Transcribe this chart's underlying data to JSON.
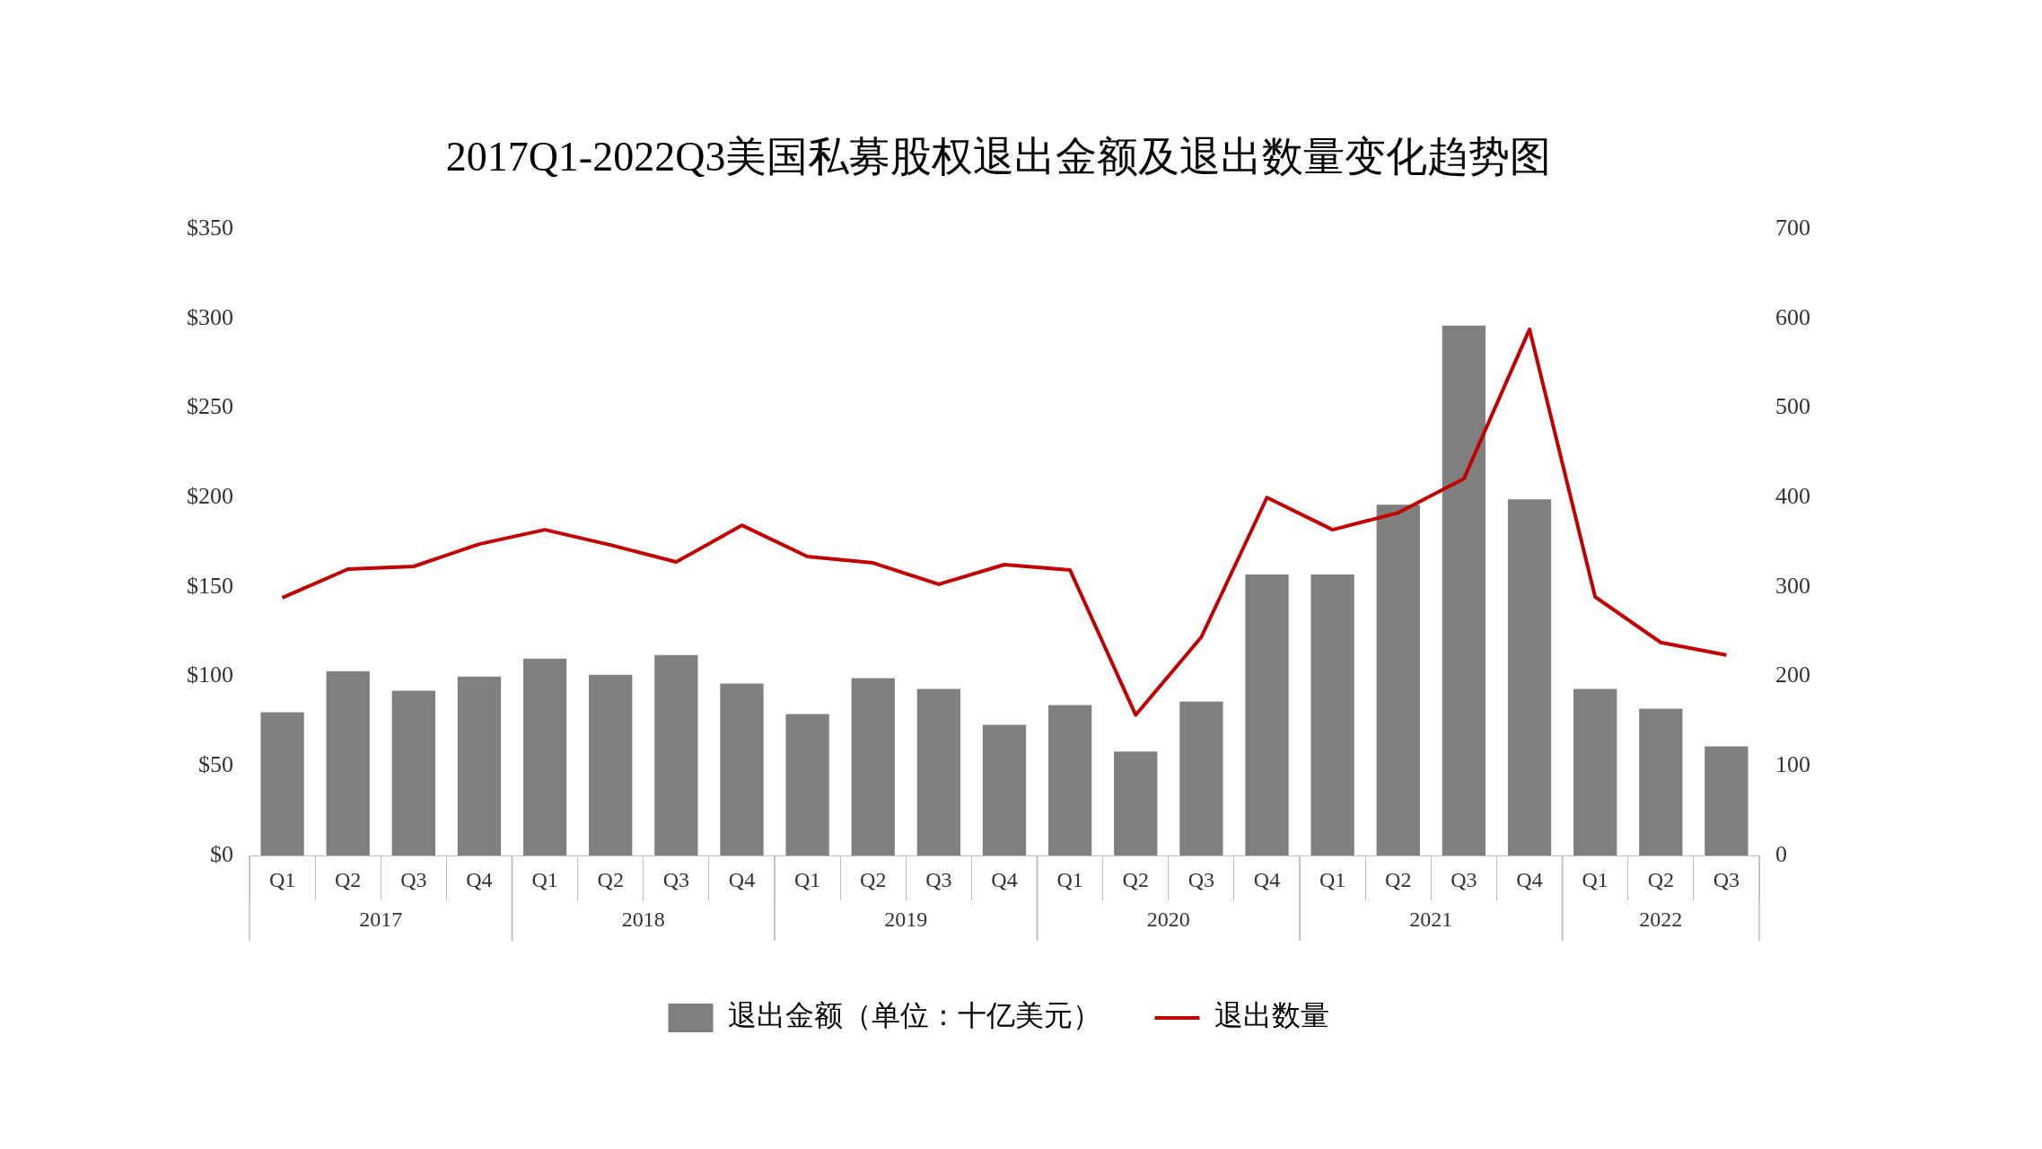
{
  "chart_data": {
    "type": "bar",
    "title": "2017Q1-2022Q3美国私募股权退出金额及退出数量变化趋势图",
    "categories": [
      "Q1",
      "Q2",
      "Q3",
      "Q4",
      "Q1",
      "Q2",
      "Q3",
      "Q4",
      "Q1",
      "Q2",
      "Q3",
      "Q4",
      "Q1",
      "Q2",
      "Q3",
      "Q4",
      "Q1",
      "Q2",
      "Q3",
      "Q4",
      "Q1",
      "Q2",
      "Q3"
    ],
    "series": [
      {
        "name": "退出金额（单位：十亿美元）",
        "color": "#7f7f7f",
        "values": [
          80,
          103,
          92,
          100,
          110,
          101,
          112,
          96,
          79,
          99,
          93,
          73,
          84,
          58,
          86,
          157,
          157,
          196,
          296,
          199,
          93,
          82,
          61
        ]
      },
      {
        "name": "退出数量",
        "type": "line",
        "axis": "y2",
        "color": "#c00000",
        "values": [
          288,
          320,
          323,
          348,
          364,
          347,
          328,
          369,
          334,
          327,
          303,
          325,
          319,
          157,
          244,
          400,
          364,
          383,
          421,
          588,
          289,
          238,
          224
        ]
      }
    ],
    "ylim": [
      0,
      350
    ],
    "yticks": [
      {
        "value": 0,
        "label": "$0"
      },
      {
        "value": 50,
        "label": "$50"
      },
      {
        "value": 100,
        "label": "$100"
      },
      {
        "value": 150,
        "label": "$150"
      },
      {
        "value": 200,
        "label": "$200"
      },
      {
        "value": 250,
        "label": "$250"
      },
      {
        "value": 300,
        "label": "$300"
      },
      {
        "value": 350,
        "label": "$350"
      }
    ],
    "y2lim": [
      0,
      700
    ],
    "y2ticks": [
      0,
      100,
      200,
      300,
      400,
      500,
      600,
      700
    ],
    "annotations": [
      "2017",
      "2018",
      "2019",
      "2020",
      "2021",
      "2022"
    ],
    "grid": false,
    "legend": "bottom",
    "marker": "none",
    "line_style": "solid"
  }
}
